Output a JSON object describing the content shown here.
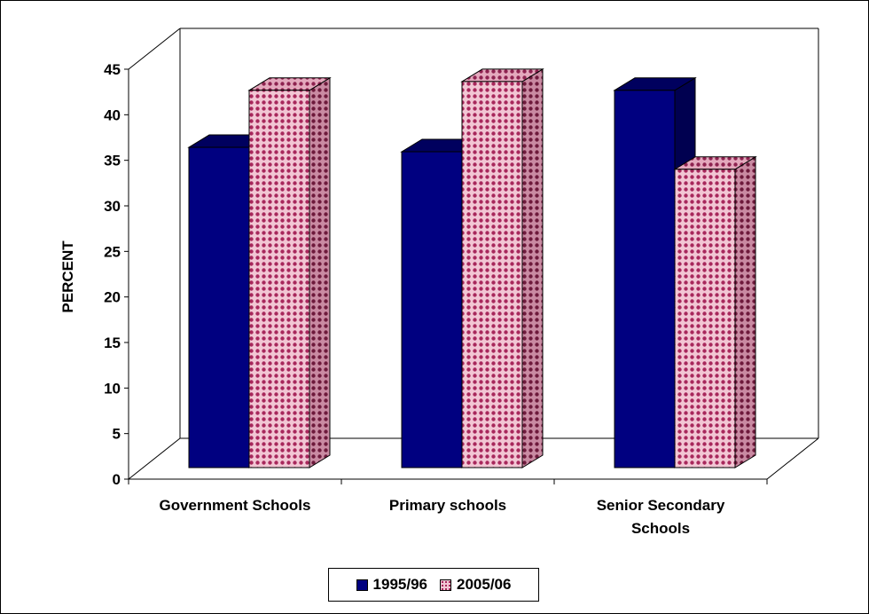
{
  "chart_data": {
    "type": "bar",
    "title": "",
    "xlabel": "",
    "ylabel": "PERCENT",
    "ylim": [
      0,
      45
    ],
    "yticks": [
      0,
      5,
      10,
      15,
      20,
      25,
      30,
      35,
      40,
      45
    ],
    "categories": [
      "Government Schools",
      "Primary schools",
      "Senior Secondary Schools"
    ],
    "category_lines": [
      [
        "Government Schools"
      ],
      [
        "Primary schools"
      ],
      [
        "Senior Secondary",
        "Schools"
      ]
    ],
    "series": [
      {
        "name": "1995/96",
        "values": [
          36.5,
          36,
          43
        ],
        "color": "#000080"
      },
      {
        "name": "2005/06",
        "values": [
          43,
          44,
          34
        ],
        "color": "#c0507a"
      }
    ],
    "legend_position": "bottom",
    "grid": false,
    "three_d": true
  },
  "legend": {
    "item1": "1995/96",
    "item2": "2005/06"
  }
}
